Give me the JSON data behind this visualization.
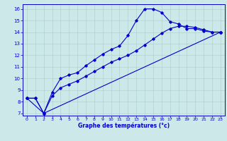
{
  "xlabel": "Graphe des températures (°c)",
  "bg_color": "#cce8e8",
  "line_color": "#0000cc",
  "grid_color": "#aacccc",
  "xlim": [
    -0.5,
    23.5
  ],
  "ylim": [
    6.8,
    16.4
  ],
  "yticks": [
    7,
    8,
    9,
    10,
    11,
    12,
    13,
    14,
    15,
    16
  ],
  "xticks": [
    0,
    1,
    2,
    3,
    4,
    5,
    6,
    7,
    8,
    9,
    10,
    11,
    12,
    13,
    14,
    15,
    16,
    17,
    18,
    19,
    20,
    21,
    22,
    23
  ],
  "line1_x": [
    0,
    1,
    2,
    3,
    4,
    5,
    6,
    7,
    8,
    9,
    10,
    11,
    12,
    13,
    14,
    15,
    16,
    17,
    18,
    19,
    20,
    21,
    22,
    23
  ],
  "line1_y": [
    8.3,
    8.3,
    7.0,
    8.8,
    10.0,
    10.3,
    10.5,
    11.1,
    11.6,
    12.1,
    12.5,
    12.8,
    13.7,
    15.0,
    16.0,
    16.0,
    15.7,
    14.9,
    14.7,
    14.3,
    14.3,
    14.1,
    14.0,
    14.0
  ],
  "line2_x": [
    0,
    1,
    2,
    3,
    4,
    5,
    6,
    7,
    8,
    9,
    10,
    11,
    12,
    13,
    14,
    15,
    16,
    17,
    18,
    19,
    20,
    21,
    22,
    23
  ],
  "line2_y": [
    8.3,
    8.3,
    7.0,
    8.5,
    9.2,
    9.5,
    9.8,
    10.2,
    10.6,
    11.0,
    11.4,
    11.7,
    12.0,
    12.4,
    12.9,
    13.4,
    13.9,
    14.3,
    14.5,
    14.5,
    14.4,
    14.2,
    14.0,
    14.0
  ],
  "line3_x": [
    0,
    2,
    23
  ],
  "line3_y": [
    8.3,
    7.0,
    14.0
  ]
}
